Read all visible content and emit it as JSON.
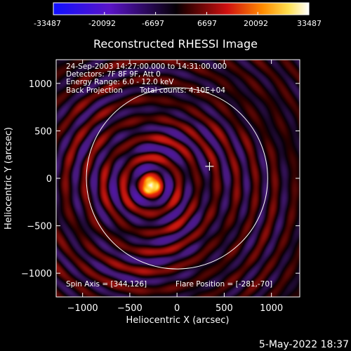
{
  "colorbar": {
    "ticks": [
      "-33487",
      "-20092",
      "-6697",
      "6697",
      "20092",
      "33487"
    ]
  },
  "footer": {
    "timestamp": "5-May-2022 18:37"
  },
  "chart_data": {
    "type": "heatmap",
    "title": "Reconstructed RHESSI Image",
    "xlabel": "Heliocentric X (arcsec)",
    "ylabel": "Heliocentric Y (arcsec)",
    "xlim": [
      -1280,
      1300
    ],
    "ylim": [
      -1250,
      1250
    ],
    "x_ticks": [
      -1000,
      -500,
      0,
      500,
      1000
    ],
    "y_ticks": [
      -1000,
      -500,
      0,
      500,
      1000
    ],
    "x_tick_labels": [
      "−1000",
      "−500",
      "0",
      "500",
      "1000"
    ],
    "y_tick_labels": [
      "−1000",
      "−500",
      "0",
      "500",
      "1000"
    ],
    "value_range": [
      -33487,
      33487
    ],
    "colormap": "rhessi-blue-black-red-yellow-white",
    "annotations": [
      "24-Sep-2003 14:27:00.000 to 14:31:00.000",
      "Detectors: 7F 8F 9F, Att 0",
      "Energy Range: 6.0 - 12.0 keV"
    ],
    "method_label": "Back Projection",
    "total_counts_label": "Total counts: 4.10E+04",
    "spin_axis_label": "Spin Axis = [344,126]",
    "flare_position_label": "Flare Position = [-281,-70]",
    "flare_position": [
      -281,
      -70
    ],
    "spin_axis": [
      344,
      126
    ],
    "solar_disk": {
      "center": [
        0,
        0
      ],
      "radius_arcsec": 960
    },
    "source_peak": 33487,
    "source_width_arcsec": 60,
    "sidelobe_wavelength_arcsec": 205,
    "sidelobe_decay_arcsec": 1500
  }
}
